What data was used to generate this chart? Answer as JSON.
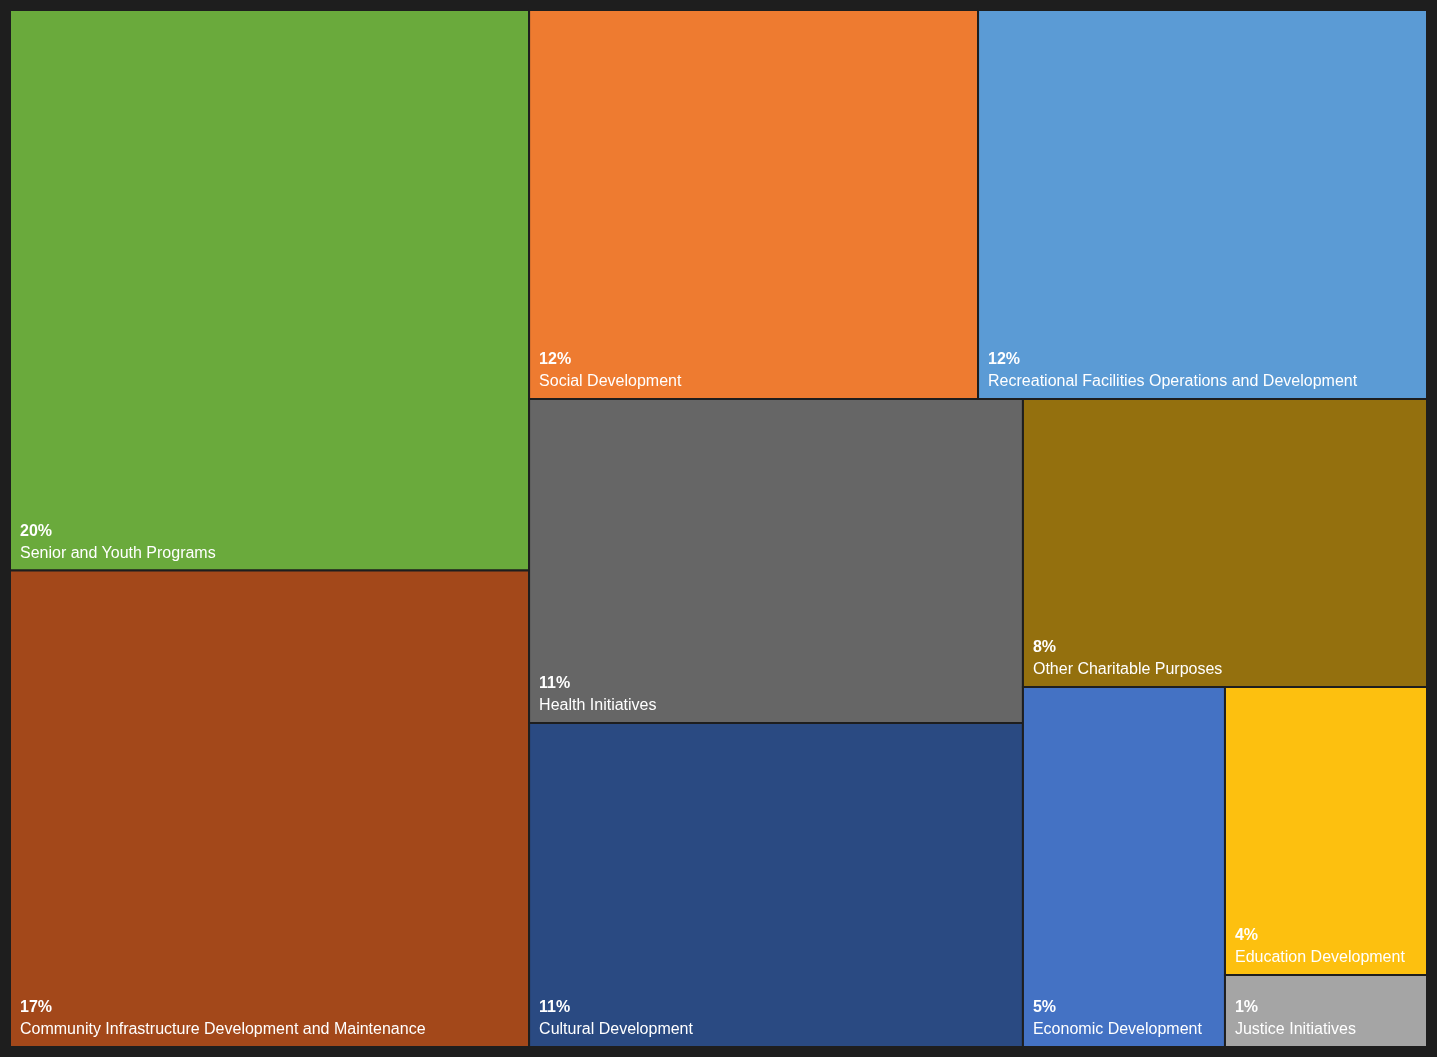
{
  "chart_data": {
    "type": "other",
    "categories": [
      "Senior and Youth Programs",
      "Community Infrastructure Development and Maintenance",
      "Social Development",
      "Recreational Facilities Operations and Development",
      "Health Initiatives",
      "Cultural Development",
      "Other Charitable Purposes",
      "Economic Development",
      "Education Development",
      "Justice Initiatives"
    ],
    "values": [
      20,
      17,
      12,
      12,
      11,
      11,
      8,
      5,
      4,
      1
    ],
    "value_labels": [
      "20%",
      "17%",
      "12%",
      "12%",
      "11%",
      "11%",
      "8%",
      "5%",
      "4%",
      "1%"
    ],
    "colors": [
      "#6aaa3c",
      "#a3481a",
      "#ee7b30",
      "#5b9bd5",
      "#666666",
      "#2a4a82",
      "#94700e",
      "#4472c4",
      "#fdc00f",
      "#a5a5a5"
    ]
  }
}
